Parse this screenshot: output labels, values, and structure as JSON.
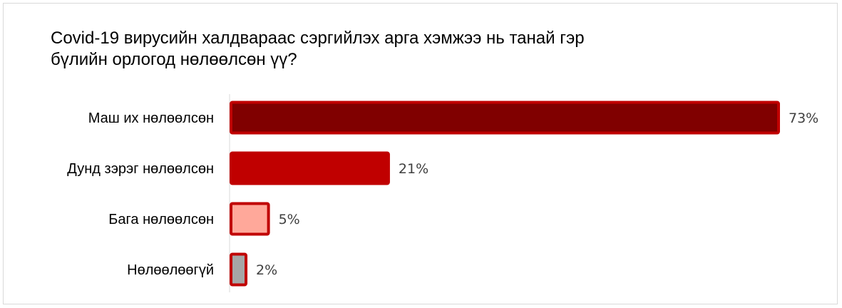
{
  "chart_data": {
    "type": "bar",
    "orientation": "horizontal",
    "title_lines": [
      "Covid-19 вирусийн халдвараас сэргийлэх арга хэмжээ нь танай гэр",
      "бүлийн орлогод нөлөөлсөн үү?"
    ],
    "categories": [
      "Маш их нөлөөлсөн",
      "Дунд зэрэг нөлөөлсөн",
      "Бага нөлөөлсөн",
      "Нөлөөлөөгүй"
    ],
    "values": [
      73,
      21,
      5,
      2
    ],
    "value_labels": [
      "73%",
      "21%",
      "5%",
      "2%"
    ],
    "bar_fill_colors": [
      "#800000",
      "#c00000",
      "#ffa89a",
      "#a6a6a6"
    ],
    "bar_border_color": "#c00000",
    "xlim": [
      0,
      73
    ],
    "legend": "none",
    "grid": false
  }
}
